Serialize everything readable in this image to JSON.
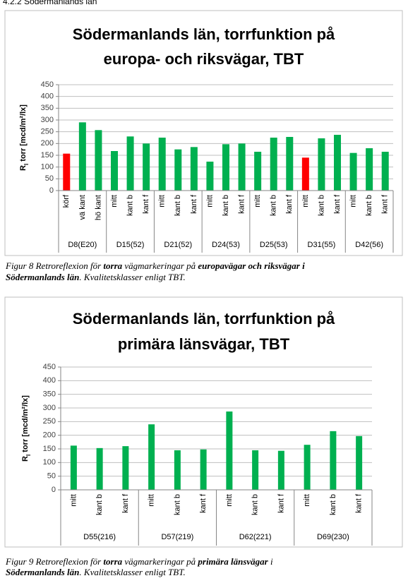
{
  "heading": "4.2.2     Södermanlands län",
  "chart_data": [
    {
      "type": "bar",
      "title": [
        "Södermanlands län, torrfunktion på",
        "europa- och riksvägar, TBT"
      ],
      "ylabel": [
        "R",
        "l",
        " torr [mcd/m²/lx]"
      ],
      "ylim": [
        0,
        450
      ],
      "yticks": [
        0,
        50,
        100,
        150,
        200,
        250,
        300,
        350,
        400,
        450
      ],
      "grid": true,
      "groups": [
        {
          "name": "D8(E20)",
          "categories": [
            "körf",
            "vä kant",
            "hö kant"
          ],
          "values": [
            157,
            290,
            257
          ],
          "colors": [
            "#ff0000",
            "#00b050",
            "#00b050"
          ]
        },
        {
          "name": "D15(52)",
          "categories": [
            "mitt",
            "kant b",
            "kant f"
          ],
          "values": [
            168,
            230,
            200
          ],
          "colors": [
            "#00b050",
            "#00b050",
            "#00b050"
          ]
        },
        {
          "name": "D21(52)",
          "categories": [
            "mitt",
            "kant b",
            "kant f"
          ],
          "values": [
            225,
            175,
            185
          ],
          "colors": [
            "#00b050",
            "#00b050",
            "#00b050"
          ]
        },
        {
          "name": "D24(53)",
          "categories": [
            "mitt",
            "kant b",
            "kant f"
          ],
          "values": [
            123,
            197,
            200
          ],
          "colors": [
            "#00b050",
            "#00b050",
            "#00b050"
          ]
        },
        {
          "name": "D25(53)",
          "categories": [
            "mitt",
            "kant b",
            "kant f"
          ],
          "values": [
            165,
            225,
            228
          ],
          "colors": [
            "#00b050",
            "#00b050",
            "#00b050"
          ]
        },
        {
          "name": "D31(55)",
          "categories": [
            "mitt",
            "kant b",
            "kant f"
          ],
          "values": [
            140,
            222,
            237
          ],
          "colors": [
            "#ff0000",
            "#00b050",
            "#00b050"
          ]
        },
        {
          "name": "D42(56)",
          "categories": [
            "mitt",
            "kant b",
            "kant f"
          ],
          "values": [
            160,
            180,
            165
          ],
          "colors": [
            "#00b050",
            "#00b050",
            "#00b050"
          ]
        }
      ]
    },
    {
      "type": "bar",
      "title": [
        "Södermanlands län, torrfunktion på",
        "primära länsvägar, TBT"
      ],
      "ylabel": [
        "R",
        "l",
        " torr [mcd/m²/lx]"
      ],
      "ylim": [
        0,
        450
      ],
      "yticks": [
        0,
        50,
        100,
        150,
        200,
        250,
        300,
        350,
        400,
        450
      ],
      "grid": true,
      "groups": [
        {
          "name": "D55(216)",
          "categories": [
            "mitt",
            "kant b",
            "kant f"
          ],
          "values": [
            162,
            153,
            160
          ],
          "colors": [
            "#00b050",
            "#00b050",
            "#00b050"
          ]
        },
        {
          "name": "D57(219)",
          "categories": [
            "mitt",
            "kant b",
            "kant f"
          ],
          "values": [
            240,
            145,
            148
          ],
          "colors": [
            "#00b050",
            "#00b050",
            "#00b050"
          ]
        },
        {
          "name": "D62(221)",
          "categories": [
            "mitt",
            "kant b",
            "kant f"
          ],
          "values": [
            287,
            145,
            143
          ],
          "colors": [
            "#00b050",
            "#00b050",
            "#00b050"
          ]
        },
        {
          "name": "D69(230)",
          "categories": [
            "mitt",
            "kant b",
            "kant f"
          ],
          "values": [
            165,
            215,
            197
          ],
          "colors": [
            "#00b050",
            "#00b050",
            "#00b050"
          ]
        }
      ]
    }
  ],
  "captions": [
    [
      [
        {
          "text": "Figur 8  Retroreflexion för ",
          "bold": false
        },
        {
          "text": "torra",
          "bold": true
        },
        {
          "text": " vägmarkeringar på ",
          "bold": false
        },
        {
          "text": "europavägar och riksvägar i",
          "bold": true
        }
      ],
      [
        {
          "text": "Södermanlands län",
          "bold": true
        },
        {
          "text": ". Kvalitetsklasser enligt TBT.",
          "bold": false
        }
      ]
    ],
    [
      [
        {
          "text": "Figur 9  Retroreflexion för ",
          "bold": false
        },
        {
          "text": "torra",
          "bold": true
        },
        {
          "text": " vägmarkeringar på ",
          "bold": false
        },
        {
          "text": "primära länsvägar",
          "bold": true
        },
        {
          "text": " i",
          "bold": false
        }
      ],
      [
        {
          "text": "Södermanlands län",
          "bold": true
        },
        {
          "text": ". Kvalitetsklasser enligt TBT.",
          "bold": false
        }
      ]
    ]
  ]
}
